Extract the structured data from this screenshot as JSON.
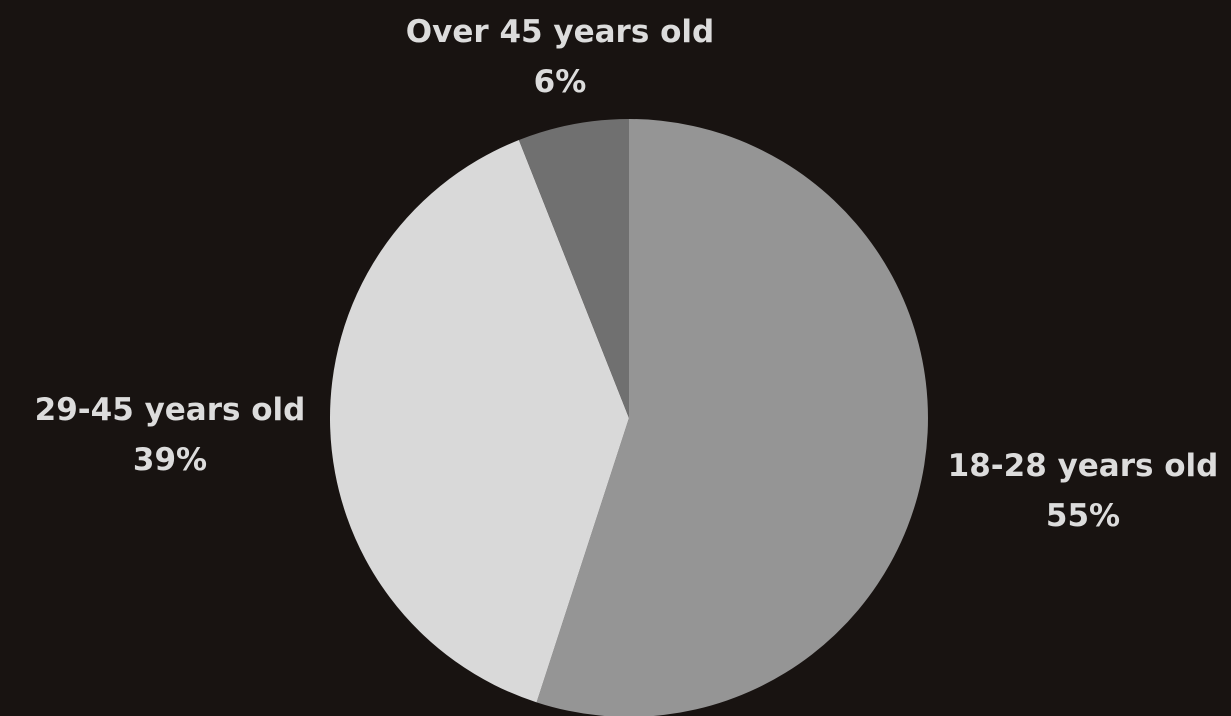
{
  "chart_data": {
    "type": "pie",
    "title": "",
    "start_angle_deg": 0,
    "direction": "clockwise",
    "background_color": "#181311",
    "label_color": "#dcdcdc",
    "slices": [
      {
        "name": "18-28 years old",
        "value": 55,
        "value_label": "55%",
        "color": "#959595"
      },
      {
        "name": "29-45 years old",
        "value": 39,
        "value_label": "39%",
        "color": "#d9d9d9"
      },
      {
        "name": "Over 45 years old",
        "value": 6,
        "value_label": "6%",
        "color": "#707070"
      }
    ]
  }
}
